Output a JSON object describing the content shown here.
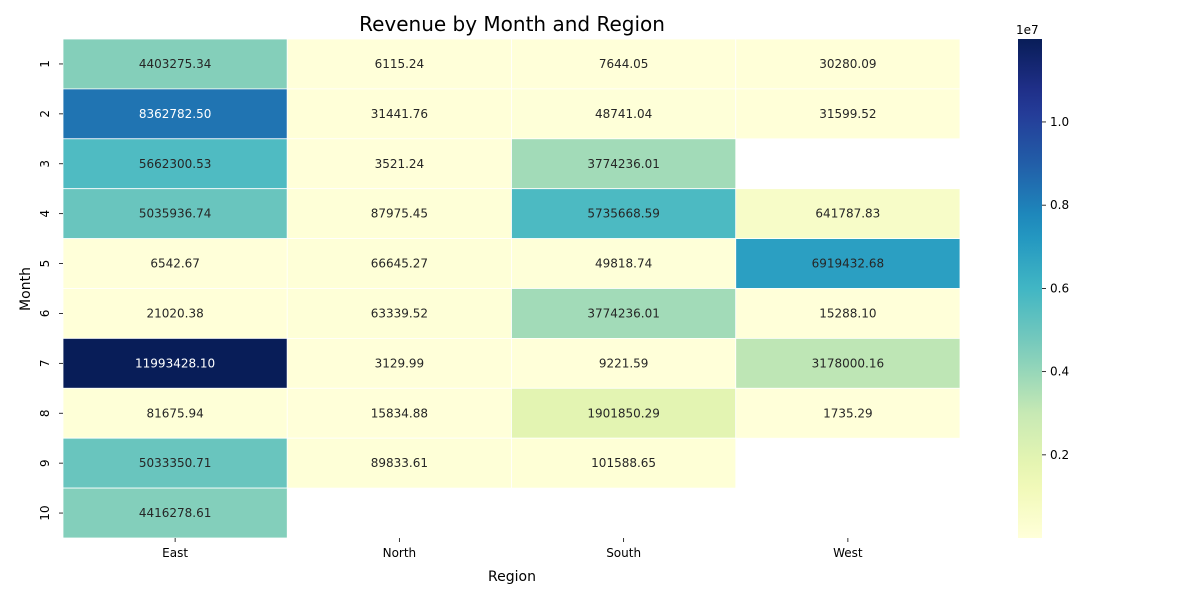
{
  "chart_data": {
    "type": "heatmap",
    "title": "Revenue by Month and Region",
    "xlabel": "Region",
    "ylabel": "Month",
    "columns": [
      "East",
      "North",
      "South",
      "West"
    ],
    "rows": [
      "1",
      "2",
      "3",
      "4",
      "5",
      "6",
      "7",
      "8",
      "9",
      "10"
    ],
    "values": [
      [
        4403275.34,
        6115.24,
        7644.05,
        30280.09
      ],
      [
        8362782.5,
        31441.76,
        48741.04,
        31599.52
      ],
      [
        5662300.53,
        3521.24,
        3774236.01,
        null
      ],
      [
        5035936.74,
        87975.45,
        5735668.59,
        641787.83
      ],
      [
        6542.67,
        66645.27,
        49818.74,
        6919432.68
      ],
      [
        21020.38,
        63339.52,
        3774236.01,
        15288.1
      ],
      [
        11993428.1,
        3129.99,
        9221.59,
        3178000.16
      ],
      [
        81675.94,
        15834.88,
        1901850.29,
        1735.29
      ],
      [
        5033350.71,
        89833.61,
        101588.65,
        null
      ],
      [
        4416278.61,
        null,
        null,
        null
      ]
    ],
    "labels": [
      [
        "4403275.34",
        "6115.24",
        "7644.05",
        "30280.09"
      ],
      [
        "8362782.50",
        "31441.76",
        "48741.04",
        "31599.52"
      ],
      [
        "5662300.53",
        "3521.24",
        "3774236.01",
        ""
      ],
      [
        "5035936.74",
        "87975.45",
        "5735668.59",
        "641787.83"
      ],
      [
        "6542.67",
        "66645.27",
        "49818.74",
        "6919432.68"
      ],
      [
        "21020.38",
        "63339.52",
        "3774236.01",
        "15288.10"
      ],
      [
        "11993428.10",
        "3129.99",
        "9221.59",
        "3178000.16"
      ],
      [
        "81675.94",
        "15834.88",
        "1901850.29",
        "1735.29"
      ],
      [
        "5033350.71",
        "89833.61",
        "101588.65",
        ""
      ],
      [
        "4416278.61",
        "",
        "",
        ""
      ]
    ],
    "colormap": "YlGnBu",
    "colorbar": {
      "min": 1735.29,
      "max": 11993428.1,
      "ticks": [
        "0.2",
        "0.4",
        "0.6",
        "0.8",
        "1.0"
      ],
      "tick_values": [
        2000000,
        4000000,
        6000000,
        8000000,
        10000000
      ],
      "offset_label": "1e7"
    },
    "colors": {
      "grid_line": "#ffffff",
      "text_dark": "#262626",
      "text_light": "#ffffff"
    }
  }
}
